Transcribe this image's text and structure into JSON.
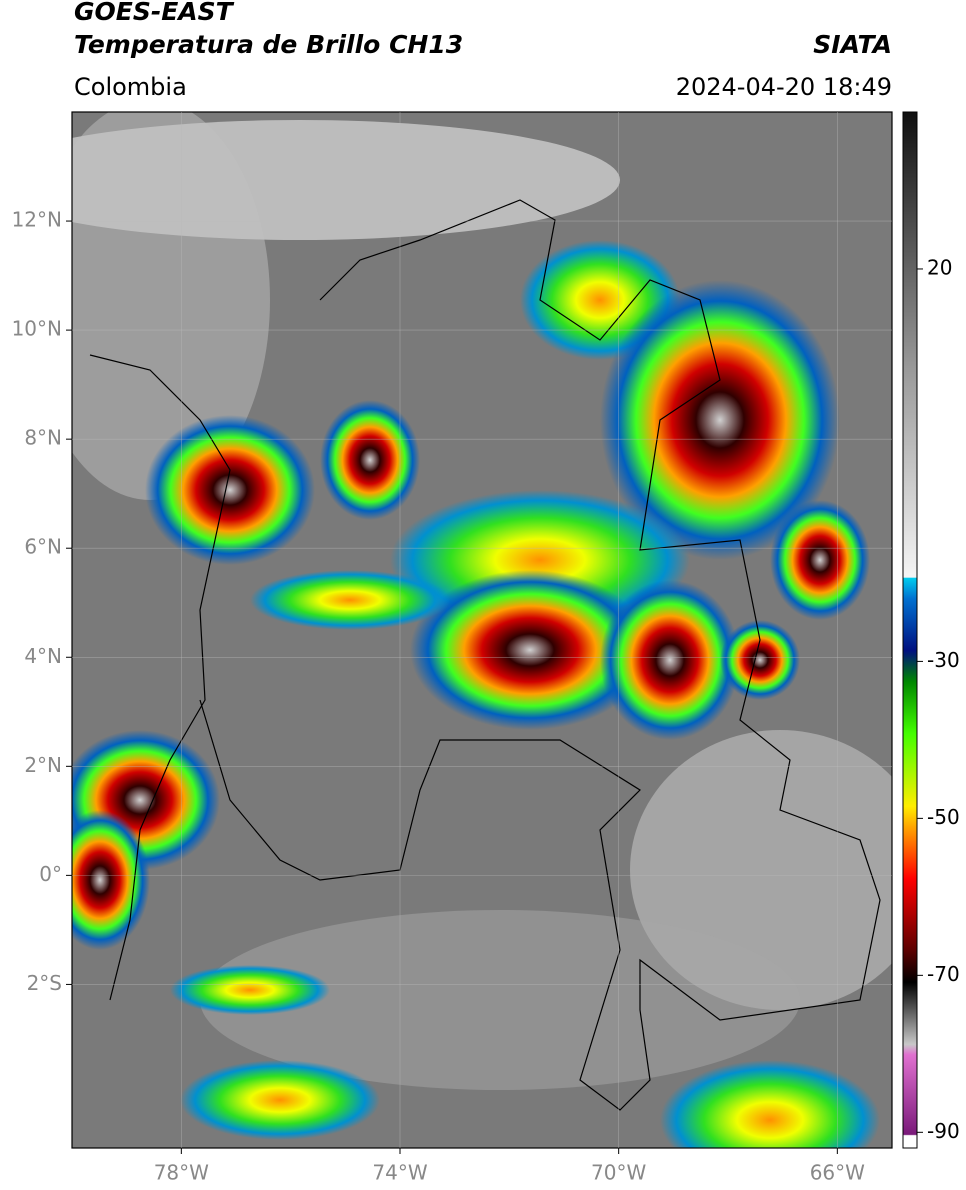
{
  "header": {
    "title": "GOES-EAST",
    "subtitle": "Temperatura de Brillo CH13",
    "source": "SIATA",
    "region": "Colombia",
    "datetime": "2024-04-20 18:49"
  },
  "map": {
    "xlim": [
      -80,
      -65
    ],
    "ylim": [
      -5,
      14
    ],
    "xticks": [
      {
        "value": -78,
        "label": "78°W"
      },
      {
        "value": -74,
        "label": "74°W"
      },
      {
        "value": -70,
        "label": "70°W"
      },
      {
        "value": -66,
        "label": "66°W"
      }
    ],
    "yticks": [
      {
        "value": 12,
        "label": "12°N"
      },
      {
        "value": 10,
        "label": "10°N"
      },
      {
        "value": 8,
        "label": "8°N"
      },
      {
        "value": 6,
        "label": "6°N"
      },
      {
        "value": 4,
        "label": "4°N"
      },
      {
        "value": 2,
        "label": "2°N"
      },
      {
        "value": 0,
        "label": "0°"
      },
      {
        "value": -2,
        "label": "2°S"
      }
    ]
  },
  "colorbar": {
    "lim": [
      -92,
      40
    ],
    "ticks": [
      20,
      -30,
      -50,
      -70,
      -90
    ]
  }
}
